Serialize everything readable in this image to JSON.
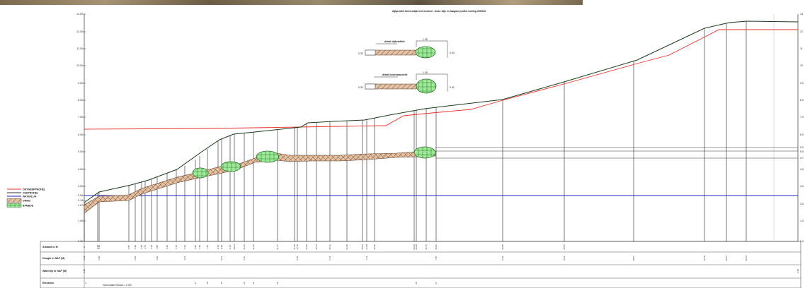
{
  "header": {
    "title": "dijkprofiel binnendijk met bermen: kruin dijk en laagste profiel meting 020915"
  },
  "axis": {
    "left_ticks": [
      "13.00",
      "12.00",
      "11.00",
      "10.00",
      "9.00",
      "8.00",
      "7.00",
      "6.00",
      "5.00",
      "4.00",
      "3.00",
      "2.54",
      "2.19",
      "1.97",
      "1.00",
      "0.00"
    ],
    "right_ticks": [
      "13",
      "12",
      "11",
      "10",
      "9.0",
      "8.0",
      "7.0",
      "6.0",
      "5.2",
      "5.0",
      "4.7",
      "4.0",
      "3.0",
      "2.0",
      "1.0",
      "0.0"
    ]
  },
  "legend": {
    "items": [
      {
        "label": "ONTWERPPROFIEL",
        "color": "#e8302a",
        "kind": "line"
      },
      {
        "label": "OUDPROFIEL",
        "color": "#333333",
        "kind": "line"
      },
      {
        "label": "WATERLIJN",
        "color": "#1f1fc8",
        "kind": "line"
      },
      {
        "label": "GRIND",
        "color": "#d2a887",
        "kind": "hatch"
      },
      {
        "label": "BAMBOE",
        "color": "#8fe08a",
        "kind": "fill"
      }
    ]
  },
  "details": [
    {
      "title": "detail dijkstoffeit",
      "top_label": "1.28",
      "left_label": "0.30",
      "right_label": "0.53"
    },
    {
      "title": "detail bovenaanzicht",
      "top_label": "1.28",
      "left_label": "0.30",
      "right_label": "0.62"
    }
  ],
  "table": {
    "rows": [
      {
        "label": "Afstand in M",
        "values": [
          "0",
          "0.70",
          "0.93",
          "2.57",
          "3.20",
          "3.49",
          "3.73",
          "4.12",
          "4.55",
          "5.24",
          "5.70",
          "6.30",
          "6.82",
          "7.30",
          "7.66",
          "8.10",
          "8.45",
          "9.14",
          "10.34",
          "11.06",
          "11.30",
          "11.77",
          "12.40",
          "13.18",
          "14.05",
          "14.30",
          "15.12",
          "16.15",
          "16.53",
          "17.09",
          "18.35",
          "20.40",
          "26.00",
          "30.75",
          "36.86",
          "40.95",
          "46.56"
        ]
      },
      {
        "label": "Hoogte in NAP (M)",
        "values": [
          "1.63",
          "2.60",
          "2.95",
          "3.20",
          "4.42",
          "5.91",
          "6.25",
          "6.48",
          "6.76",
          "7.14",
          "7.68",
          "8.18",
          "8.94",
          "10.81",
          "12.18",
          "12.57",
          "12.63"
        ]
      },
      {
        "label": "Waterlijn in NAP (M)",
        "values": [
          "2.54",
          "2.54"
        ]
      },
      {
        "label": "Elevation",
        "values": [
          "0",
          "17",
          "18",
          "19",
          "20",
          "21",
          "22",
          "25",
          "27"
        ]
      }
    ],
    "scale_note": "Horizontale Schaal = 1:100"
  }
}
